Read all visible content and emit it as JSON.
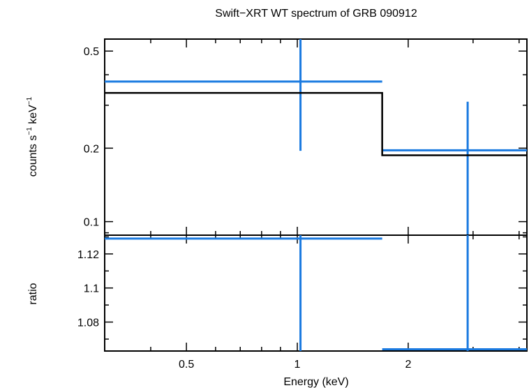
{
  "chart_data": {
    "type": "line",
    "title": "Swift−XRT WT spectrum of GRB 090912",
    "xlabel": "Energy (keV)",
    "x_scale": "log",
    "xlim": [
      0.3,
      4.2
    ],
    "x_ticks": [
      0.5,
      1,
      2
    ],
    "x_tick_labels": [
      "0.5",
      "1",
      "2"
    ],
    "x_minor_ticks": [
      0.3,
      0.4,
      0.6,
      0.7,
      0.8,
      0.9,
      3,
      4
    ],
    "panels": [
      {
        "name": "spectrum",
        "ylabel_main": "counts s",
        "ylabel_exp1": "−1",
        "ylabel_mid": " keV",
        "ylabel_exp2": "−1",
        "y_scale": "log",
        "ylim": [
          0.088,
          0.56
        ],
        "y_ticks": [
          0.1,
          0.2,
          0.5
        ],
        "y_tick_labels": [
          "0.1",
          "0.2",
          "0.5"
        ],
        "y_minor_ticks": [
          0.09,
          0.3,
          0.4
        ],
        "series": [
          {
            "name": "data",
            "color": "#1a7ae0",
            "points": [
              {
                "x": 1.02,
                "xlo": 0.3,
                "xhi": 1.7,
                "y": 0.375,
                "ylo": 0.195,
                "yhi": 0.56
              },
              {
                "x": 2.9,
                "xlo": 1.7,
                "xhi": 4.2,
                "y": 0.196,
                "ylo": 0.088,
                "yhi": 0.31
              }
            ]
          },
          {
            "name": "model",
            "color": "#000000",
            "steps": [
              {
                "xlo": 0.3,
                "xhi": 1.7,
                "y": 0.337
              },
              {
                "xlo": 1.7,
                "xhi": 4.2,
                "y": 0.187
              }
            ]
          }
        ]
      },
      {
        "name": "ratio",
        "ylabel": "ratio",
        "y_scale": "linear",
        "ylim": [
          1.063,
          1.131
        ],
        "y_ticks": [
          1.08,
          1.1,
          1.12
        ],
        "y_tick_labels": [
          "1.08",
          "1.1",
          "1.12"
        ],
        "y_minor_ticks": [
          1.07,
          1.09,
          1.11,
          1.13
        ],
        "series": [
          {
            "name": "data",
            "color": "#1a7ae0",
            "points": [
              {
                "x": 1.02,
                "xlo": 0.3,
                "xhi": 1.7,
                "y": 1.129,
                "ylo": 1.063,
                "yhi": 1.131
              },
              {
                "x": 2.9,
                "xlo": 1.7,
                "xhi": 4.2,
                "y": 1.064,
                "ylo": 1.063,
                "yhi": 1.131
              }
            ]
          }
        ]
      }
    ]
  }
}
